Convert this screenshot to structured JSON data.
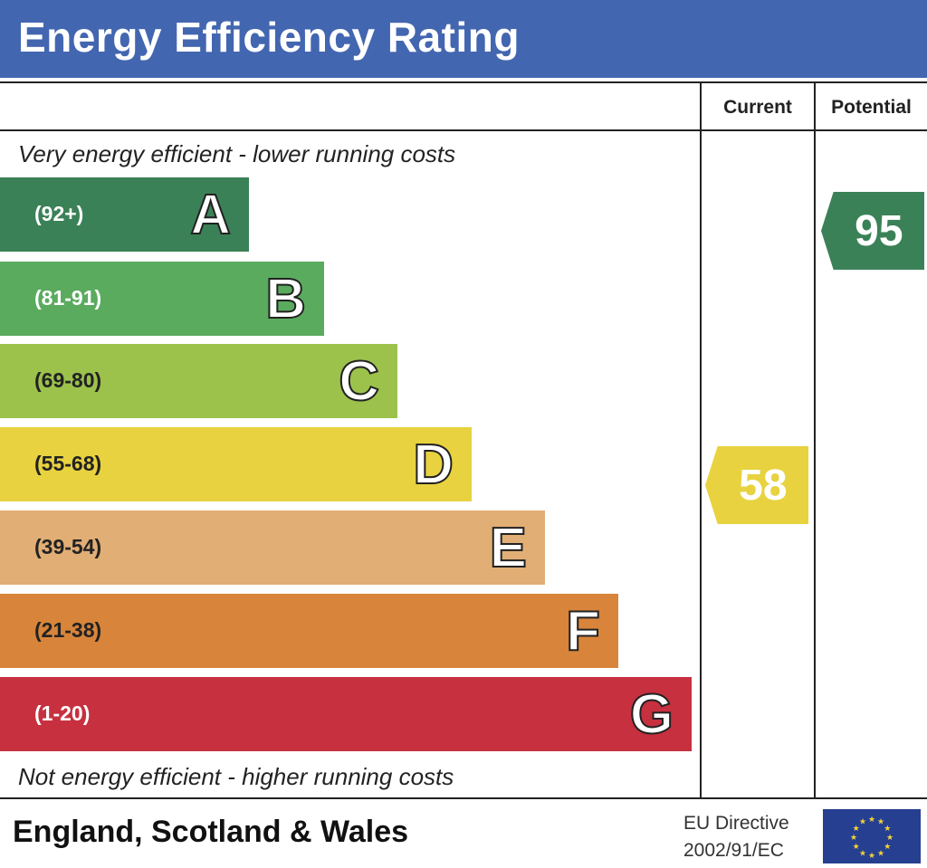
{
  "header": {
    "title": "Energy Efficiency Rating"
  },
  "columns": {
    "current": "Current",
    "potential": "Potential"
  },
  "top_note": "Very energy efficient - lower running costs",
  "bottom_note": "Not energy efficient - higher running costs",
  "footer": {
    "country": "England, Scotland & Wales",
    "directive_line1": "EU Directive",
    "directive_line2": "2002/91/EC"
  },
  "chart_data": {
    "type": "bar",
    "bands": [
      {
        "letter": "A",
        "range": "(92+)",
        "color": "#3b8157"
      },
      {
        "letter": "B",
        "range": "(81-91)",
        "color": "#5aab5e"
      },
      {
        "letter": "C",
        "range": "(69-80)",
        "color": "#9cc24c"
      },
      {
        "letter": "D",
        "range": "(55-68)",
        "color": "#e8d23f"
      },
      {
        "letter": "E",
        "range": "(39-54)",
        "color": "#e1ae75"
      },
      {
        "letter": "F",
        "range": "(21-38)",
        "color": "#d8853b"
      },
      {
        "letter": "G",
        "range": "(1-20)",
        "color": "#c7303f"
      }
    ],
    "current": {
      "value": "58",
      "band": "D",
      "color": "#e8d23f"
    },
    "potential": {
      "value": "95",
      "band": "A",
      "color": "#3b8157"
    }
  }
}
